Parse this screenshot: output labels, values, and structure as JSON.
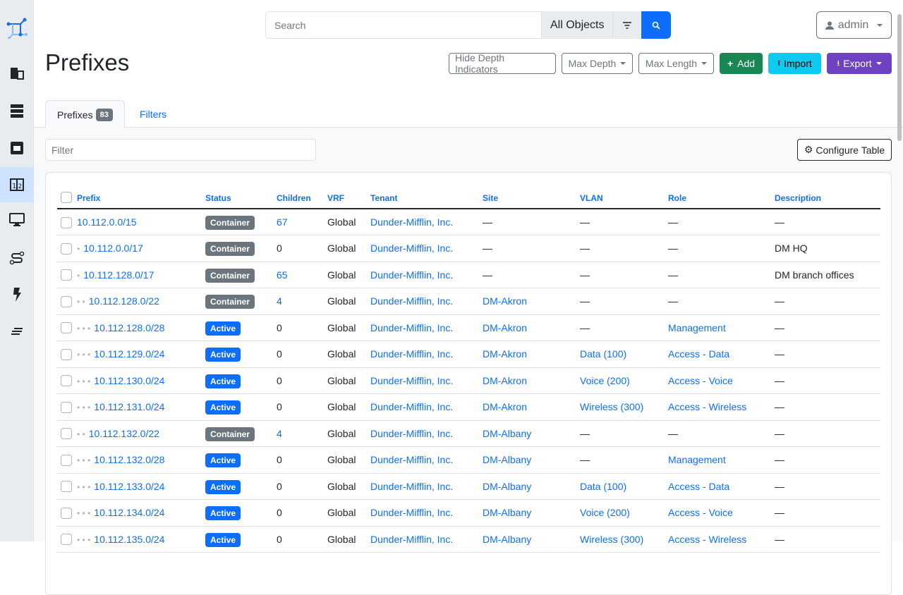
{
  "sidebar": {
    "items": [
      "logo",
      "organization",
      "devices",
      "connections",
      "ipam",
      "virtualization",
      "circuits",
      "power",
      "other"
    ],
    "active": "ipam"
  },
  "search": {
    "placeholder": "Search",
    "scope": "All Objects"
  },
  "user": {
    "name": "admin"
  },
  "page": {
    "title": "Prefixes"
  },
  "actions": {
    "hide_depth": "Hide Depth Indicators",
    "max_depth": "Max Depth",
    "max_length": "Max Length",
    "add": "Add",
    "import": "Import",
    "export": "Export"
  },
  "tabs": {
    "prefixes": "Prefixes",
    "count": "83",
    "filters": "Filters"
  },
  "filter": {
    "placeholder": "Filter"
  },
  "configure": "Configure Table",
  "colors": {
    "primary": "#0d6efd",
    "container": "#6c757d",
    "active": "#0d6efd",
    "add": "#198754",
    "import": "#0dcaf0",
    "export": "#6f42c1"
  },
  "table": {
    "headers": [
      "Prefix",
      "Status",
      "Children",
      "VRF",
      "Tenant",
      "Site",
      "VLAN",
      "Role",
      "Description"
    ],
    "rows": [
      {
        "depth": 0,
        "prefix": "10.112.0.0/15",
        "status": "Container",
        "children": "67",
        "vrf": "Global",
        "tenant": "Dunder-Mifflin, Inc.",
        "site": "—",
        "vlan": "—",
        "role": "—",
        "description": "—"
      },
      {
        "depth": 1,
        "prefix": "10.112.0.0/17",
        "status": "Container",
        "children": "0",
        "vrf": "Global",
        "tenant": "Dunder-Mifflin, Inc.",
        "site": "—",
        "vlan": "—",
        "role": "—",
        "description": "DM HQ"
      },
      {
        "depth": 1,
        "prefix": "10.112.128.0/17",
        "status": "Container",
        "children": "65",
        "vrf": "Global",
        "tenant": "Dunder-Mifflin, Inc.",
        "site": "—",
        "vlan": "—",
        "role": "—",
        "description": "DM branch offices"
      },
      {
        "depth": 2,
        "prefix": "10.112.128.0/22",
        "status": "Container",
        "children": "4",
        "vrf": "Global",
        "tenant": "Dunder-Mifflin, Inc.",
        "site": "DM-Akron",
        "vlan": "—",
        "role": "—",
        "description": "—"
      },
      {
        "depth": 3,
        "prefix": "10.112.128.0/28",
        "status": "Active",
        "children": "0",
        "vrf": "Global",
        "tenant": "Dunder-Mifflin, Inc.",
        "site": "DM-Akron",
        "vlan": "—",
        "role": "Management",
        "description": "—"
      },
      {
        "depth": 3,
        "prefix": "10.112.129.0/24",
        "status": "Active",
        "children": "0",
        "vrf": "Global",
        "tenant": "Dunder-Mifflin, Inc.",
        "site": "DM-Akron",
        "vlan": "Data (100)",
        "role": "Access - Data",
        "description": "—"
      },
      {
        "depth": 3,
        "prefix": "10.112.130.0/24",
        "status": "Active",
        "children": "0",
        "vrf": "Global",
        "tenant": "Dunder-Mifflin, Inc.",
        "site": "DM-Akron",
        "vlan": "Voice (200)",
        "role": "Access - Voice",
        "description": "—"
      },
      {
        "depth": 3,
        "prefix": "10.112.131.0/24",
        "status": "Active",
        "children": "0",
        "vrf": "Global",
        "tenant": "Dunder-Mifflin, Inc.",
        "site": "DM-Akron",
        "vlan": "Wireless (300)",
        "role": "Access - Wireless",
        "description": "—"
      },
      {
        "depth": 2,
        "prefix": "10.112.132.0/22",
        "status": "Container",
        "children": "4",
        "vrf": "Global",
        "tenant": "Dunder-Mifflin, Inc.",
        "site": "DM-Albany",
        "vlan": "—",
        "role": "—",
        "description": "—"
      },
      {
        "depth": 3,
        "prefix": "10.112.132.0/28",
        "status": "Active",
        "children": "0",
        "vrf": "Global",
        "tenant": "Dunder-Mifflin, Inc.",
        "site": "DM-Albany",
        "vlan": "—",
        "role": "Management",
        "description": "—"
      },
      {
        "depth": 3,
        "prefix": "10.112.133.0/24",
        "status": "Active",
        "children": "0",
        "vrf": "Global",
        "tenant": "Dunder-Mifflin, Inc.",
        "site": "DM-Albany",
        "vlan": "Data (100)",
        "role": "Access - Data",
        "description": "—"
      },
      {
        "depth": 3,
        "prefix": "10.112.134.0/24",
        "status": "Active",
        "children": "0",
        "vrf": "Global",
        "tenant": "Dunder-Mifflin, Inc.",
        "site": "DM-Albany",
        "vlan": "Voice (200)",
        "role": "Access - Voice",
        "description": "—"
      },
      {
        "depth": 3,
        "prefix": "10.112.135.0/24",
        "status": "Active",
        "children": "0",
        "vrf": "Global",
        "tenant": "Dunder-Mifflin, Inc.",
        "site": "DM-Albany",
        "vlan": "Wireless (300)",
        "role": "Access - Wireless",
        "description": "—"
      }
    ]
  }
}
